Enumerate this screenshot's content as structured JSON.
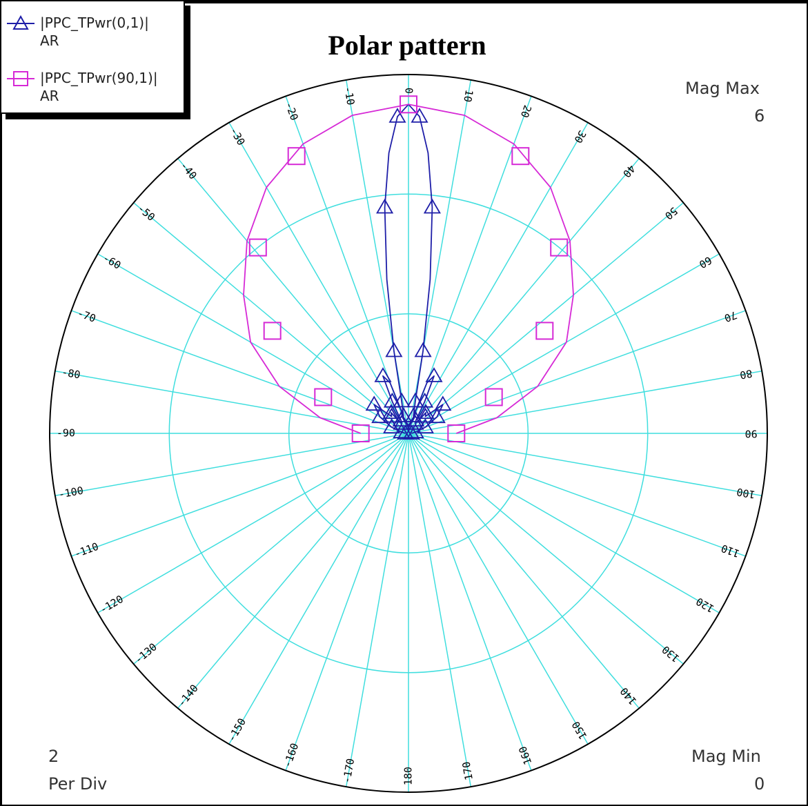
{
  "chart_data": {
    "type": "polar",
    "title": "Polar pattern",
    "angle_ticks": [
      "0",
      "10",
      "20",
      "30",
      "40",
      "50",
      "60",
      "70",
      "80",
      "90",
      "100",
      "110",
      "120",
      "130",
      "140",
      "150",
      "160",
      "170",
      "180",
      "-170",
      "-160",
      "-150",
      "-140",
      "-130",
      "-120",
      "-110",
      "-100",
      "-90",
      "-80",
      "-70",
      "-60",
      "-50",
      "-40",
      "-30",
      "-20",
      "-10"
    ],
    "mag_max_label": "Mag Max",
    "mag_max": "6",
    "mag_min_label": "Mag Min",
    "mag_min": "0",
    "per_div_value": "2",
    "per_div_label": "Per Div",
    "rlim": [
      0,
      6
    ],
    "grid": true,
    "legend_position": "top-left",
    "series": [
      {
        "name": "|PPC_TPwr(0,1)|",
        "sub": "AR",
        "color": "#1e1ea8",
        "marker": "triangle",
        "angles": [
          -90,
          -80,
          -70,
          -60,
          -50,
          -45,
          -40,
          -35,
          -30,
          -27,
          -24,
          -20,
          -16,
          -12,
          -10,
          -8,
          -6,
          -4,
          -2,
          0,
          2,
          4,
          6,
          8,
          10,
          12,
          16,
          20,
          24,
          27,
          30,
          35,
          40,
          45,
          50,
          60,
          70,
          80,
          90
        ],
        "values": [
          0.05,
          0.12,
          0.3,
          0.55,
          0.75,
          0.4,
          0.45,
          0.2,
          0.25,
          0.6,
          1.05,
          0.9,
          0.3,
          0.55,
          1.4,
          2.6,
          3.8,
          4.7,
          5.3,
          5.5,
          5.3,
          4.7,
          3.8,
          2.6,
          1.4,
          0.55,
          0.3,
          0.9,
          1.05,
          0.6,
          0.25,
          0.2,
          0.45,
          0.4,
          0.75,
          0.55,
          0.3,
          0.12,
          0.05
        ]
      },
      {
        "name": "|PPC_TPwr(90,1)|",
        "sub": "AR",
        "color": "#d629d6",
        "marker": "square",
        "angles": [
          -90,
          -80,
          -70,
          -60,
          -50,
          -40,
          -30,
          -20,
          -10,
          0,
          10,
          20,
          30,
          40,
          50,
          60,
          70,
          80,
          90
        ],
        "values": [
          0.8,
          1.5,
          2.3,
          3.05,
          3.6,
          4.2,
          4.75,
          5.15,
          5.4,
          5.5,
          5.4,
          5.15,
          4.75,
          4.2,
          3.6,
          3.05,
          2.3,
          1.5,
          0.8
        ],
        "marker_angles": [
          -90,
          -67,
          -53,
          -39,
          -22,
          0,
          22,
          39,
          53,
          67,
          90
        ],
        "marker_values": [
          0.8,
          1.55,
          2.85,
          4.0,
          5.0,
          5.5,
          5.0,
          4.0,
          2.85,
          1.55,
          0.8
        ]
      }
    ]
  }
}
